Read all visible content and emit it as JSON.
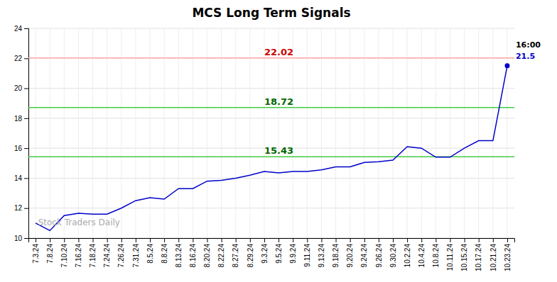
{
  "chart_data": {
    "type": "line",
    "title": "MCS Long Term Signals",
    "categories": [
      "7.3.24",
      "7.8.24",
      "7.10.24",
      "7.16.24",
      "7.18.24",
      "7.24.24",
      "7.26.24",
      "7.31.24",
      "8.5.24",
      "8.8.24",
      "8.13.24",
      "8.16.24",
      "8.20.24",
      "8.22.24",
      "8.27.24",
      "8.29.24",
      "9.3.24",
      "9.5.24",
      "9.9.24",
      "9.11.24",
      "9.13.24",
      "9.18.24",
      "9.20.24",
      "9.24.24",
      "9.26.24",
      "9.30.24",
      "10.2.24",
      "10.4.24",
      "10.8.24",
      "10.11.24",
      "10.15.24",
      "10.17.24",
      "10.21.24",
      "10.23.24"
    ],
    "values": [
      11.0,
      10.5,
      11.5,
      11.65,
      11.6,
      11.6,
      12.0,
      12.5,
      12.7,
      12.6,
      13.3,
      13.3,
      13.8,
      13.85,
      14.0,
      14.2,
      14.45,
      14.35,
      14.45,
      14.45,
      14.55,
      14.75,
      14.75,
      15.05,
      15.1,
      15.2,
      16.1,
      16.0,
      15.4,
      15.4,
      16.0,
      16.5,
      16.5,
      21.5
    ],
    "color": "#0000cc",
    "ylim": [
      10,
      24
    ],
    "yticks": [
      10,
      12,
      14,
      16,
      18,
      20,
      22,
      24
    ],
    "grid": true,
    "reference_lines": [
      {
        "value": 22.02,
        "color": "#ffaaaa",
        "label_color": "#cc0000"
      },
      {
        "value": 18.72,
        "color": "#44cc44",
        "label_color": "#006600"
      },
      {
        "value": 15.43,
        "color": "#44cc44",
        "label_color": "#006600"
      }
    ],
    "annotations": [
      {
        "text": "16:00",
        "color": "#000000"
      },
      {
        "text": "21.5",
        "color": "#0000cc"
      }
    ],
    "watermark": "Stock Traders Daily",
    "watermark_color": "#aaaaaa"
  }
}
